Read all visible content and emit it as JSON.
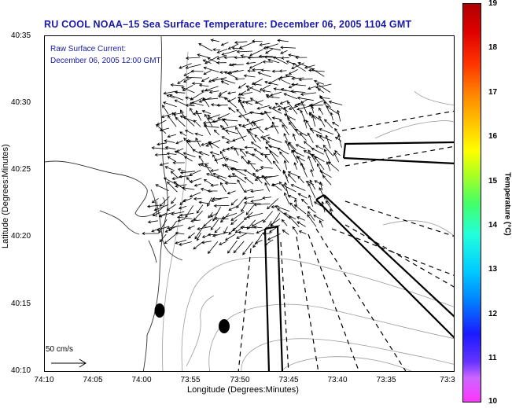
{
  "title": "RU COOL   NOAA–15  Sea Surface Temperature:  December 06, 2005 1104 GMT",
  "current": {
    "label": "Raw Surface Current:",
    "time": "December 06, 2005 12:00 GMT"
  },
  "scale": {
    "label": "50 cm/s"
  },
  "axes": {
    "xlabel": "Longitude (Degrees:Minutes)",
    "ylabel": "Latitude (Degrees:Minutes)",
    "xticks": [
      "74:10",
      "74:05",
      "74:00",
      "73:55",
      "73:50",
      "73:45",
      "73:40",
      "73:35",
      "73:3"
    ],
    "yticks": [
      "40:35",
      "40:30",
      "40:25",
      "40:20",
      "40:15",
      "40:10"
    ]
  },
  "colorbar": {
    "label": "Temperature (°C)",
    "ticks": [
      "19",
      "18",
      "17",
      "16",
      "15",
      "14",
      "13",
      "12",
      "11",
      "10"
    ],
    "min": 10,
    "max": 19
  }
}
